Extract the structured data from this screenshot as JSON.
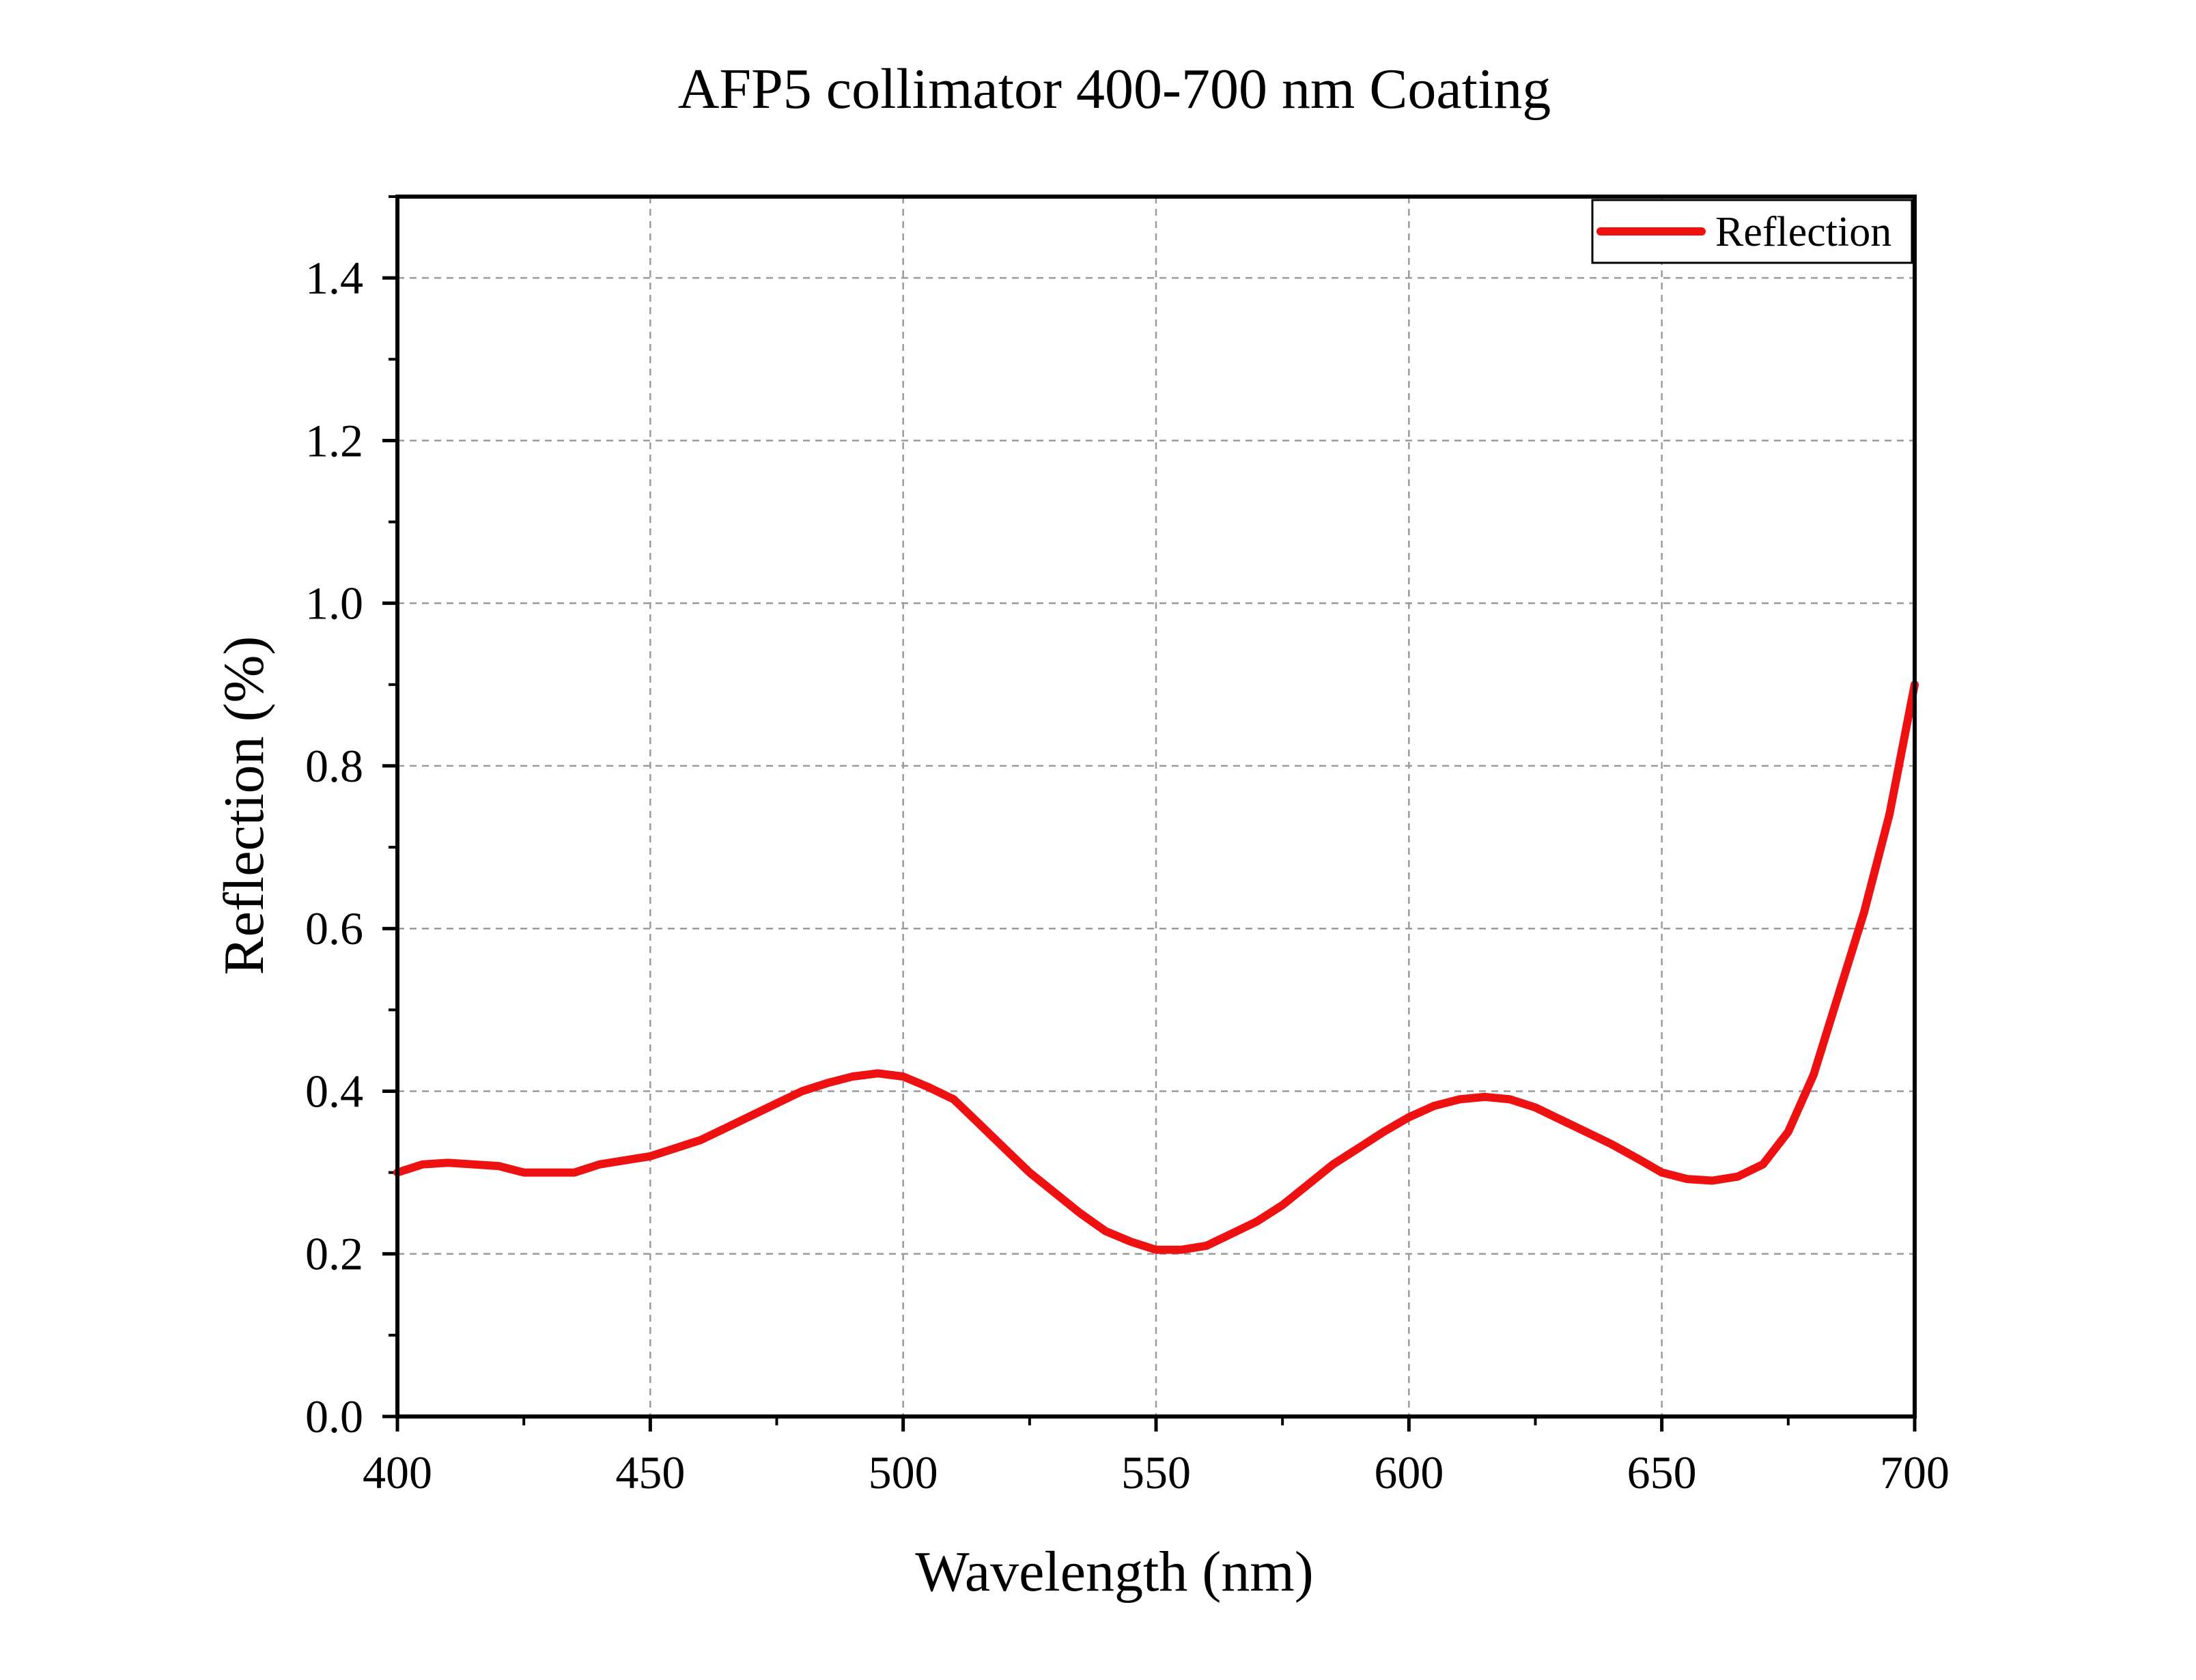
{
  "chart_data": {
    "type": "line",
    "title": "AFP5 collimator 400-700 nm Coating",
    "xlabel": "Wavelength (nm)",
    "ylabel": "Reflection (%)",
    "xlim": [
      400,
      700
    ],
    "ylim": [
      0,
      1.5
    ],
    "x_ticks": [
      400,
      450,
      500,
      550,
      600,
      650,
      700
    ],
    "x_tick_labels": [
      "400",
      "450",
      "500",
      "550",
      "600",
      "650",
      "700"
    ],
    "y_ticks": [
      0.0,
      0.2,
      0.4,
      0.6,
      0.8,
      1.0,
      1.2,
      1.4
    ],
    "y_tick_labels": [
      "0.0",
      "0.2",
      "0.4",
      "0.6",
      "0.8",
      "1.0",
      "1.2",
      "1.4"
    ],
    "grid": true,
    "legend_position": "top-right",
    "series": [
      {
        "name": "Reflection",
        "color": "#ee1111",
        "x": [
          400,
          405,
          410,
          415,
          420,
          425,
          430,
          435,
          440,
          445,
          450,
          455,
          460,
          465,
          470,
          475,
          480,
          485,
          490,
          495,
          500,
          505,
          510,
          515,
          520,
          525,
          530,
          535,
          540,
          545,
          550,
          555,
          560,
          565,
          570,
          575,
          580,
          585,
          590,
          595,
          600,
          605,
          610,
          615,
          620,
          625,
          630,
          635,
          640,
          645,
          650,
          655,
          660,
          665,
          670,
          675,
          680,
          685,
          690,
          695,
          700
        ],
        "y": [
          0.3,
          0.31,
          0.312,
          0.31,
          0.308,
          0.3,
          0.3,
          0.3,
          0.31,
          0.315,
          0.32,
          0.33,
          0.34,
          0.355,
          0.37,
          0.385,
          0.4,
          0.41,
          0.418,
          0.422,
          0.418,
          0.405,
          0.39,
          0.36,
          0.33,
          0.3,
          0.275,
          0.25,
          0.228,
          0.215,
          0.205,
          0.205,
          0.21,
          0.225,
          0.24,
          0.26,
          0.285,
          0.31,
          0.33,
          0.35,
          0.368,
          0.382,
          0.39,
          0.393,
          0.39,
          0.38,
          0.365,
          0.35,
          0.335,
          0.318,
          0.3,
          0.292,
          0.29,
          0.295,
          0.31,
          0.35,
          0.42,
          0.52,
          0.62,
          0.74,
          0.9
        ]
      }
    ]
  }
}
